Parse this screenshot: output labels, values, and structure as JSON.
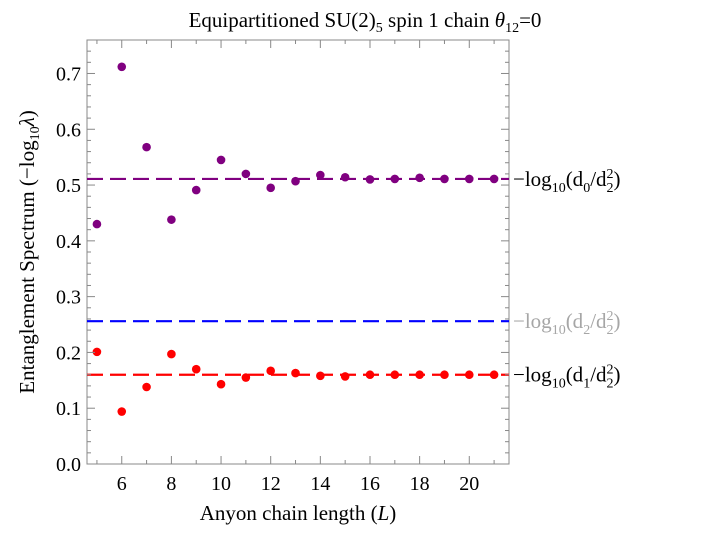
{
  "chart_data": {
    "type": "scatter",
    "title": "Equipartitioned SU(2)",
    "title_sub": "5",
    "title_mid": " spin 1 chain ",
    "title_theta": "θ",
    "title_theta_sub": "12",
    "title_end": "=0",
    "xlabel_text": "Anyon chain length (",
    "xlabel_var": "L",
    "xlabel_close": ")",
    "ylabel": "Entanglement  Spectrum (−log",
    "ylabel_sub": "10",
    "ylabel_var": "λ",
    "ylabel_close": ")",
    "xlim": [
      4.6,
      21.6
    ],
    "ylim": [
      0,
      0.76
    ],
    "x_ticks": [
      6,
      8,
      10,
      12,
      14,
      16,
      18,
      20
    ],
    "y_ticks": [
      0.0,
      0.1,
      0.2,
      0.3,
      0.4,
      0.5,
      0.6,
      0.7
    ],
    "y_tick_labels": [
      "0.0",
      "0.1",
      "0.2",
      "0.3",
      "0.4",
      "0.5",
      "0.6",
      "0.7"
    ],
    "x_tick_labels": [
      "6",
      "8",
      "10",
      "12",
      "14",
      "16",
      "18",
      "20"
    ],
    "grid": false,
    "series": [
      {
        "color": "#800080",
        "x": [
          5,
          6,
          7,
          8,
          9,
          10,
          11,
          12,
          13,
          14,
          15,
          16,
          17,
          18,
          19,
          20,
          21
        ],
        "y": [
          0.43,
          0.712,
          0.568,
          0.438,
          0.491,
          0.545,
          0.52,
          0.495,
          0.507,
          0.518,
          0.514,
          0.51,
          0.511,
          0.513,
          0.511,
          0.511,
          0.511
        ]
      },
      {
        "color": "#ff0000",
        "x": [
          5,
          6,
          7,
          8,
          9,
          10,
          11,
          12,
          13,
          14,
          15,
          16,
          17,
          18,
          19,
          20,
          21
        ],
        "y": [
          0.201,
          0.094,
          0.138,
          0.197,
          0.17,
          0.143,
          0.155,
          0.167,
          0.163,
          0.158,
          0.157,
          0.16,
          0.16,
          0.16,
          0.16,
          0.16,
          0.16
        ]
      }
    ],
    "reference_lines": [
      {
        "y": 0.511,
        "color": "#800080",
        "label_color": "#000000",
        "label_pre": "−log",
        "label_sub": "10",
        "label_mid": "(d",
        "label_sub2": "0",
        "label_div": "/d",
        "label_sub3": "2",
        "label_sup3": "2",
        "label_close": ")"
      },
      {
        "y": 0.256,
        "color": "#0000ff",
        "label_color": "#a6a6a6",
        "label_pre": "−log",
        "label_sub": "10",
        "label_mid": "(d",
        "label_sub2": "2",
        "label_div": "/d",
        "label_sub3": "2",
        "label_sup3": "2",
        "label_close": ")"
      },
      {
        "y": 0.16,
        "color": "#ff0000",
        "label_color": "#000000",
        "label_pre": "−log",
        "label_sub": "10",
        "label_mid": "(d",
        "label_sub2": "1",
        "label_div": "/d",
        "label_sub3": "2",
        "label_sup3": "2",
        "label_close": ")"
      }
    ]
  }
}
